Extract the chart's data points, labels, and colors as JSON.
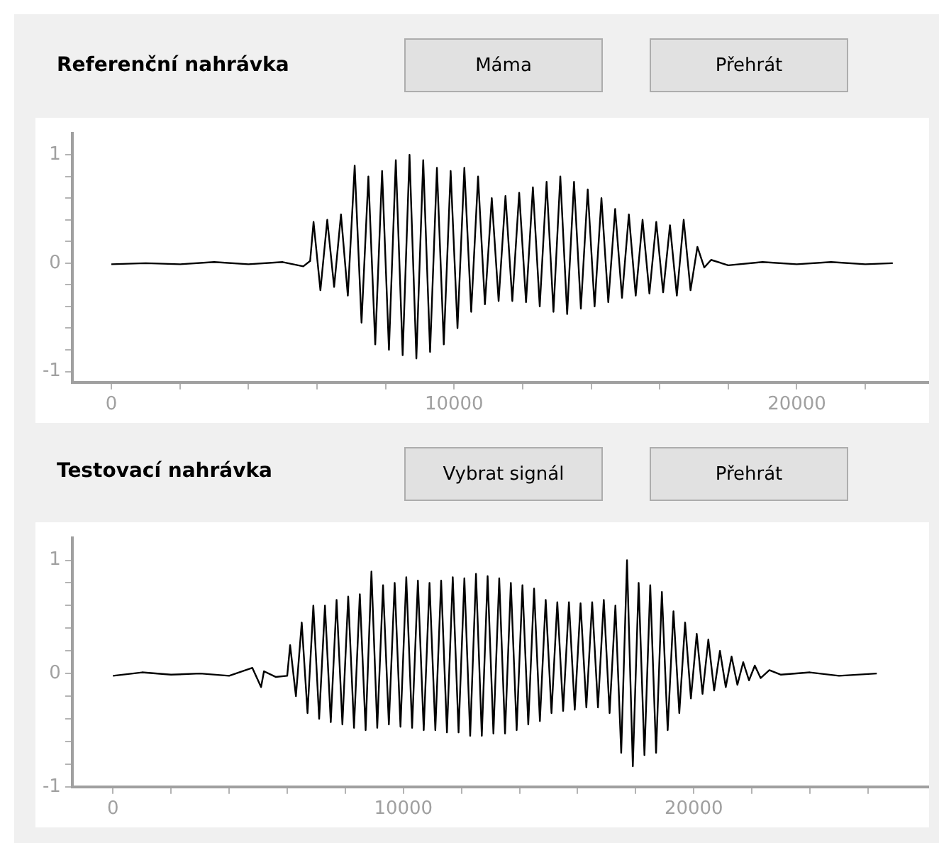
{
  "chart_data": [
    {
      "type": "line",
      "title": "Referenční nahrávka",
      "annotations": [
        "Máma",
        "Přehrát"
      ],
      "xlim": [
        -1140,
        23860
      ],
      "ylim": [
        -1.1,
        1.2
      ],
      "xticks": [
        0,
        {
          "value": 2000,
          "label": null
        },
        {
          "value": 4000,
          "label": null
        },
        {
          "value": 6000,
          "label": null
        },
        {
          "value": 8000,
          "label": null
        },
        10000,
        {
          "value": 12000,
          "label": null
        },
        {
          "value": 14000,
          "label": null
        },
        {
          "value": 16000,
          "label": null
        },
        {
          "value": 18000,
          "label": null
        },
        20000,
        {
          "value": 22000,
          "label": null
        }
      ],
      "yticks": [
        -1,
        {
          "value": -0.8,
          "label": null
        },
        {
          "value": -0.6,
          "label": null
        },
        {
          "value": -0.4,
          "label": null
        },
        {
          "value": -0.2,
          "label": null
        },
        0,
        {
          "value": 0.2,
          "label": null
        },
        {
          "value": 0.4,
          "label": null
        },
        {
          "value": 0.6,
          "label": null
        },
        {
          "value": 0.8,
          "label": null
        },
        1
      ],
      "grid": false,
      "legend": false,
      "series": [
        {
          "color": "#000000",
          "x": [
            0,
            1000,
            2000,
            3000,
            4000,
            5000,
            5600,
            5800,
            5900,
            6100,
            6300,
            6500,
            6700,
            6900,
            7100,
            7300,
            7500,
            7700,
            7900,
            8100,
            8300,
            8500,
            8700,
            8900,
            9100,
            9300,
            9500,
            9700,
            9900,
            10100,
            10300,
            10500,
            10700,
            10900,
            11100,
            11300,
            11500,
            11700,
            11900,
            12100,
            12300,
            12500,
            12700,
            12900,
            13100,
            13300,
            13500,
            13700,
            13900,
            14100,
            14300,
            14500,
            14700,
            14900,
            15100,
            15300,
            15500,
            15700,
            15900,
            16100,
            16300,
            16500,
            16700,
            16900,
            17100,
            17300,
            17500,
            18000,
            19000,
            20000,
            21000,
            22000,
            22800
          ],
          "values": [
            -0.01,
            0.0,
            -0.01,
            0.01,
            -0.01,
            0.01,
            -0.03,
            0.02,
            0.38,
            -0.25,
            0.4,
            -0.22,
            0.45,
            -0.3,
            0.9,
            -0.55,
            0.8,
            -0.75,
            0.85,
            -0.8,
            0.95,
            -0.85,
            1.0,
            -0.88,
            0.95,
            -0.82,
            0.88,
            -0.75,
            0.85,
            -0.6,
            0.88,
            -0.45,
            0.8,
            -0.38,
            0.6,
            -0.35,
            0.62,
            -0.35,
            0.65,
            -0.36,
            0.7,
            -0.4,
            0.75,
            -0.45,
            0.8,
            -0.47,
            0.75,
            -0.42,
            0.68,
            -0.4,
            0.6,
            -0.36,
            0.5,
            -0.32,
            0.45,
            -0.3,
            0.4,
            -0.28,
            0.38,
            -0.27,
            0.35,
            -0.3,
            0.4,
            -0.25,
            0.15,
            -0.04,
            0.03,
            -0.02,
            0.01,
            -0.01,
            0.01,
            -0.01,
            0.0
          ]
        }
      ]
    },
    {
      "type": "line",
      "title": "Testovací nahrávka",
      "annotations": [
        "Vybrat signál",
        "Přehrát"
      ],
      "xlim": [
        -1400,
        28100
      ],
      "ylim": [
        -1.0,
        1.2
      ],
      "xticks": [
        0,
        {
          "value": 2000,
          "label": null
        },
        {
          "value": 4000,
          "label": null
        },
        {
          "value": 6000,
          "label": null
        },
        {
          "value": 8000,
          "label": null
        },
        10000,
        {
          "value": 12000,
          "label": null
        },
        {
          "value": 14000,
          "label": null
        },
        {
          "value": 16000,
          "label": null
        },
        {
          "value": 18000,
          "label": null
        },
        20000,
        {
          "value": 22000,
          "label": null
        },
        {
          "value": 24000,
          "label": null
        },
        {
          "value": 26000,
          "label": null
        }
      ],
      "yticks": [
        -1,
        {
          "value": -0.8,
          "label": null
        },
        {
          "value": -0.6,
          "label": null
        },
        {
          "value": -0.4,
          "label": null
        },
        {
          "value": -0.2,
          "label": null
        },
        0,
        {
          "value": 0.2,
          "label": null
        },
        {
          "value": 0.4,
          "label": null
        },
        {
          "value": 0.6,
          "label": null
        },
        {
          "value": 0.8,
          "label": null
        },
        1
      ],
      "grid": false,
      "legend": false,
      "series": [
        {
          "color": "#000000",
          "x": [
            0,
            1000,
            2000,
            3000,
            4000,
            4800,
            5100,
            5200,
            5600,
            6000,
            6100,
            6300,
            6500,
            6700,
            6900,
            7100,
            7300,
            7500,
            7700,
            7900,
            8100,
            8300,
            8500,
            8700,
            8900,
            9100,
            9300,
            9500,
            9700,
            9900,
            10100,
            10300,
            10500,
            10700,
            10900,
            11100,
            11300,
            11500,
            11700,
            11900,
            12100,
            12300,
            12500,
            12700,
            12900,
            13100,
            13300,
            13500,
            13700,
            13900,
            14100,
            14300,
            14500,
            14700,
            14900,
            15100,
            15300,
            15500,
            15700,
            15900,
            16100,
            16300,
            16500,
            16700,
            16900,
            17100,
            17300,
            17500,
            17700,
            17900,
            18100,
            18300,
            18500,
            18700,
            18900,
            19100,
            19300,
            19500,
            19700,
            19900,
            20100,
            20300,
            20500,
            20700,
            20900,
            21100,
            21300,
            21500,
            21700,
            21900,
            22100,
            22300,
            22600,
            23000,
            24000,
            25000,
            26300
          ],
          "values": [
            -0.02,
            0.01,
            -0.01,
            0.0,
            -0.02,
            0.05,
            -0.12,
            0.02,
            -0.03,
            -0.02,
            0.25,
            -0.2,
            0.45,
            -0.35,
            0.6,
            -0.4,
            0.6,
            -0.43,
            0.65,
            -0.45,
            0.68,
            -0.48,
            0.7,
            -0.5,
            0.9,
            -0.48,
            0.78,
            -0.45,
            0.8,
            -0.47,
            0.85,
            -0.48,
            0.82,
            -0.5,
            0.8,
            -0.5,
            0.82,
            -0.52,
            0.85,
            -0.52,
            0.84,
            -0.55,
            0.88,
            -0.55,
            0.86,
            -0.53,
            0.84,
            -0.53,
            0.8,
            -0.5,
            0.78,
            -0.45,
            0.75,
            -0.42,
            0.65,
            -0.35,
            0.63,
            -0.33,
            0.63,
            -0.32,
            0.62,
            -0.3,
            0.63,
            -0.3,
            0.65,
            -0.35,
            0.6,
            -0.7,
            1.0,
            -0.82,
            0.8,
            -0.72,
            0.78,
            -0.7,
            0.72,
            -0.5,
            0.55,
            -0.35,
            0.45,
            -0.22,
            0.35,
            -0.18,
            0.3,
            -0.15,
            0.2,
            -0.12,
            0.15,
            -0.1,
            0.1,
            -0.06,
            0.07,
            -0.04,
            0.03,
            -0.01,
            0.01,
            -0.02,
            0.0
          ]
        }
      ]
    }
  ]
}
